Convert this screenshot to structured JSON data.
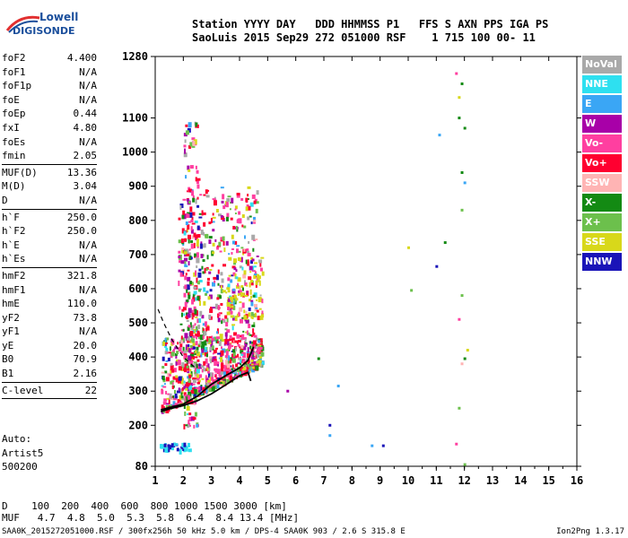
{
  "logo": {
    "line1": "Lowell",
    "line2": "DIGISONDE"
  },
  "header": {
    "line1": "Station YYYY DAY   DDD HHMMSS P1   FFS S AXN PPS IGA PS",
    "line2": "SaoLuis 2015 Sep29 272 051000 RSF    1 715 100 00- 11"
  },
  "params": [
    {
      "name": "foF2",
      "value": "4.400"
    },
    {
      "name": "foF1",
      "value": "N/A"
    },
    {
      "name": "foF1p",
      "value": "N/A"
    },
    {
      "name": "foE",
      "value": "N/A"
    },
    {
      "name": "foEp",
      "value": "0.44"
    },
    {
      "name": "fxI",
      "value": "4.80"
    },
    {
      "name": "foEs",
      "value": "N/A"
    },
    {
      "name": "fmin",
      "value": "2.05"
    },
    {
      "sep": true
    },
    {
      "name": "MUF(D)",
      "value": "13.36"
    },
    {
      "name": "M(D)",
      "value": "3.04"
    },
    {
      "name": "D",
      "value": "N/A"
    },
    {
      "sep": true
    },
    {
      "name": "h`F",
      "value": "250.0"
    },
    {
      "name": "h`F2",
      "value": "250.0"
    },
    {
      "name": "h`E",
      "value": "N/A"
    },
    {
      "name": "h`Es",
      "value": "N/A"
    },
    {
      "sep": true
    },
    {
      "name": "hmF2",
      "value": "321.8"
    },
    {
      "name": "hmF1",
      "value": "N/A"
    },
    {
      "name": "hmE",
      "value": "110.0"
    },
    {
      "name": "yF2",
      "value": "73.8"
    },
    {
      "name": "yF1",
      "value": "N/A"
    },
    {
      "name": "yE",
      "value": "20.0"
    },
    {
      "name": "B0",
      "value": "70.9"
    },
    {
      "name": "B1",
      "value": "2.16"
    },
    {
      "sep": true
    },
    {
      "name": "C-level",
      "value": "22"
    },
    {
      "sep": true
    }
  ],
  "auto": {
    "line1": "Auto:",
    "line2": "Artist5",
    "line3": "500200"
  },
  "legend": [
    {
      "label": "NoVal",
      "color": "#a9a9a9"
    },
    {
      "label": "NNE",
      "color": "#2ee0f0"
    },
    {
      "label": "E",
      "color": "#3aa6f5"
    },
    {
      "label": "W",
      "color": "#a800a8"
    },
    {
      "label": "Vo-",
      "color": "#ff3fa0"
    },
    {
      "label": "Vo+",
      "color": "#ff0030"
    },
    {
      "label": "SSW",
      "color": "#ffb4b4"
    },
    {
      "label": "X-",
      "color": "#138a13"
    },
    {
      "label": "X+",
      "color": "#6cc04c"
    },
    {
      "label": "SSE",
      "color": "#d8d81a"
    },
    {
      "label": "NNW",
      "color": "#1a14b8"
    }
  ],
  "dtable": {
    "row1": "D    100  200  400  600  800 1000 1500 3000 [km]",
    "row2": "MUF   4.7  4.8  5.0  5.3  5.8  6.4  8.4 13.4 [MHz]"
  },
  "footer": {
    "text": "SAA0K_2015272051000.RSF / 300fx256h 50 kHz 5.0 km / DPS-4 SAA0K 903 / 2.6 S 315.8 E",
    "version": "Ion2Png 1.3.17"
  },
  "chart_data": {
    "type": "scatter",
    "xlim": [
      1,
      16
    ],
    "ylim": [
      80,
      1280
    ],
    "x_ticks": [
      1,
      2,
      3,
      4,
      5,
      6,
      7,
      8,
      9,
      10,
      11,
      12,
      13,
      14,
      15,
      16
    ],
    "y_ticks": [
      80,
      200,
      300,
      400,
      500,
      600,
      700,
      800,
      900,
      1000,
      1100,
      1280
    ],
    "grid": false,
    "legend_position": "right",
    "profile_curve": {
      "x": [
        1.2,
        1.5,
        2.0,
        2.5,
        3.0,
        3.5,
        4.0,
        4.3,
        4.4
      ],
      "y": [
        240,
        248,
        258,
        272,
        292,
        318,
        345,
        355,
        330
      ]
    },
    "virtual_height_trace": {
      "x": [
        1.2,
        1.5,
        2.0,
        2.5,
        3.0,
        3.5,
        4.0,
        4.3,
        4.5
      ],
      "y": [
        245,
        252,
        262,
        285,
        320,
        345,
        368,
        390,
        430
      ]
    },
    "dashed_curve": {
      "x": [
        1.1,
        1.3,
        1.6,
        2.0,
        2.4
      ],
      "y": [
        540,
        500,
        450,
        400,
        370
      ]
    },
    "echo_clusters": [
      {
        "name": "F-trace main",
        "x": [
          1.2,
          4.8
        ],
        "y": [
          240,
          460
        ],
        "count": 700
      },
      {
        "name": "F-trace upper",
        "x": [
          1.8,
          4.6
        ],
        "y": [
          460,
          900
        ],
        "count": 420
      },
      {
        "name": "Vertical spread",
        "x": [
          2.0,
          2.5
        ],
        "y": [
          200,
          1100
        ],
        "count": 180
      },
      {
        "name": "SSE patch",
        "x": [
          3.5,
          4.8
        ],
        "y": [
          520,
          700
        ],
        "count": 90
      },
      {
        "name": "Low echoes",
        "x": [
          1.1,
          2.2
        ],
        "y": [
          130,
          150
        ],
        "count": 40
      }
    ],
    "scattered_points": [
      {
        "x": 5.7,
        "y": 300,
        "color": "#a800a8"
      },
      {
        "x": 6.8,
        "y": 395,
        "color": "#138a13"
      },
      {
        "x": 7.2,
        "y": 200,
        "color": "#1a14b8"
      },
      {
        "x": 7.2,
        "y": 170,
        "color": "#3aa6f5"
      },
      {
        "x": 7.5,
        "y": 315,
        "color": "#3aa6f5"
      },
      {
        "x": 8.7,
        "y": 140,
        "color": "#3aa6f5"
      },
      {
        "x": 9.1,
        "y": 140,
        "color": "#1a14b8"
      },
      {
        "x": 10.0,
        "y": 720,
        "color": "#d8d81a"
      },
      {
        "x": 10.1,
        "y": 595,
        "color": "#6cc04c"
      },
      {
        "x": 11.0,
        "y": 665,
        "color": "#1a14b8"
      },
      {
        "x": 11.1,
        "y": 1050,
        "color": "#3aa6f5"
      },
      {
        "x": 11.3,
        "y": 735,
        "color": "#138a13"
      },
      {
        "x": 11.7,
        "y": 1230,
        "color": "#ff3fa0"
      },
      {
        "x": 11.8,
        "y": 1160,
        "color": "#d8d81a"
      },
      {
        "x": 11.8,
        "y": 1100,
        "color": "#138a13"
      },
      {
        "x": 11.9,
        "y": 1200,
        "color": "#138a13"
      },
      {
        "x": 12.0,
        "y": 1070,
        "color": "#138a13"
      },
      {
        "x": 11.9,
        "y": 940,
        "color": "#138a13"
      },
      {
        "x": 12.0,
        "y": 910,
        "color": "#3aa6f5"
      },
      {
        "x": 11.9,
        "y": 830,
        "color": "#6cc04c"
      },
      {
        "x": 11.9,
        "y": 580,
        "color": "#6cc04c"
      },
      {
        "x": 11.8,
        "y": 510,
        "color": "#ff3fa0"
      },
      {
        "x": 12.0,
        "y": 395,
        "color": "#138a13"
      },
      {
        "x": 11.9,
        "y": 380,
        "color": "#ffb4b4"
      },
      {
        "x": 12.1,
        "y": 420,
        "color": "#d8d81a"
      },
      {
        "x": 11.8,
        "y": 250,
        "color": "#6cc04c"
      },
      {
        "x": 11.7,
        "y": 145,
        "color": "#ff3fa0"
      },
      {
        "x": 12.0,
        "y": 85,
        "color": "#6cc04c"
      }
    ]
  }
}
